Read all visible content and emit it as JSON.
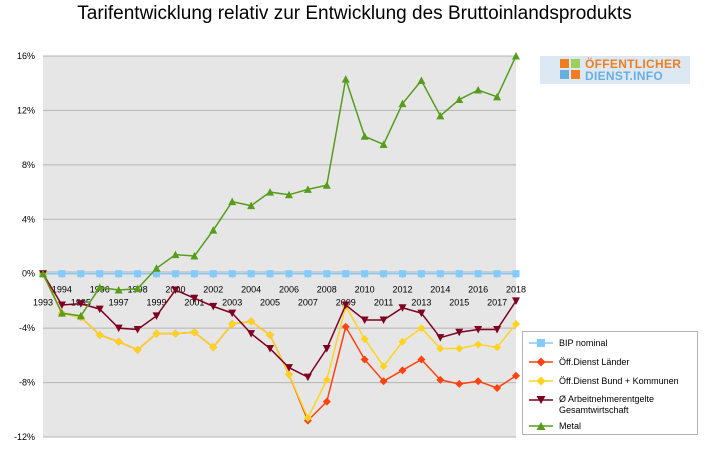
{
  "chart_data": {
    "type": "line",
    "title": "Tarifentwicklung relativ zur Entwicklung des Bruttoinlandsprodukts",
    "xlabel": "",
    "ylabel": "",
    "ylim": [
      -12,
      16
    ],
    "y_ticks": [
      "16%",
      "12%",
      "8%",
      "4%",
      "0%",
      "-4%",
      "-8%",
      "-12%"
    ],
    "y_tick_values": [
      16,
      12,
      8,
      4,
      0,
      -4,
      -8,
      -12
    ],
    "x_tick_labels": [
      "1993",
      "1994",
      "1995",
      "1996",
      "1997",
      "1998",
      "1999",
      "2000",
      "2001",
      "2002",
      "2003",
      "2004",
      "2005",
      "2006",
      "2007",
      "2008",
      "2009",
      "2010",
      "2011",
      "2012",
      "2013",
      "2014",
      "2015",
      "2016",
      "2017",
      "2018"
    ],
    "x": [
      1993,
      1994,
      1995,
      1996,
      1997,
      1998,
      1999,
      2000,
      2001,
      2002,
      2003,
      2004,
      2005,
      2006,
      2007,
      2008,
      2009,
      2010,
      2011,
      2012,
      2013,
      2014,
      2015,
      2016,
      2017,
      2018
    ],
    "grid": true,
    "legend_position": "bottom-right",
    "series": [
      {
        "name": "BIP nominal",
        "color": "#83caff",
        "marker": "square",
        "values": [
          0,
          0,
          0,
          0,
          0,
          0,
          0,
          0,
          0,
          0,
          0,
          0,
          0,
          0,
          0,
          0,
          0,
          0,
          0,
          0,
          0,
          0,
          0,
          0,
          0,
          0
        ]
      },
      {
        "name": "Öff.Dienst Länder",
        "color": "#ff420e",
        "marker": "diamond",
        "values": [
          0,
          -2.9,
          -3.2,
          -4.5,
          -5.0,
          -5.6,
          -4.4,
          -4.4,
          -4.3,
          -5.4,
          -3.7,
          -3.5,
          -4.5,
          -7.4,
          -10.8,
          -9.4,
          -3.9,
          -6.3,
          -7.9,
          -7.1,
          -6.3,
          -7.8,
          -8.1,
          -7.9,
          -8.4,
          -7.5
        ]
      },
      {
        "name": "Öff.Dienst Bund + Kommunen",
        "color": "#ffd320",
        "marker": "diamond",
        "values": [
          0,
          -2.9,
          -3.2,
          -4.5,
          -5.0,
          -5.6,
          -4.4,
          -4.4,
          -4.3,
          -5.4,
          -3.7,
          -3.5,
          -4.5,
          -7.4,
          -10.6,
          -7.8,
          -2.4,
          -4.8,
          -6.8,
          -5.0,
          -4.0,
          -5.5,
          -5.5,
          -5.2,
          -5.4,
          -3.7
        ]
      },
      {
        "name": "Ø Arbeitnehmerentgelte Gesamtwirtschaft",
        "color": "#7e0021",
        "marker": "triangle-down",
        "values": [
          0,
          -2.3,
          -2.2,
          -2.6,
          -4.0,
          -4.1,
          -3.1,
          -1.2,
          -1.8,
          -2.4,
          -2.9,
          -4.4,
          -5.5,
          -6.9,
          -7.6,
          -5.5,
          -2.3,
          -3.4,
          -3.4,
          -2.5,
          -2.9,
          -4.7,
          -4.3,
          -4.1,
          -4.1,
          -2.0
        ]
      },
      {
        "name": "Metal",
        "color": "#579d1c",
        "marker": "triangle-up",
        "values": [
          0,
          -2.9,
          -3.1,
          -1.0,
          -1.2,
          -1.1,
          0.4,
          1.4,
          1.3,
          3.2,
          5.3,
          5.0,
          6.0,
          5.8,
          6.2,
          6.5,
          14.3,
          10.1,
          9.5,
          12.5,
          14.2,
          11.6,
          12.8,
          13.5,
          13.0,
          16.0
        ]
      }
    ]
  },
  "logo": {
    "line1": "ÖFFENTLICHER",
    "line2": "DIENST.INFO"
  },
  "legend": {
    "items": [
      {
        "text": "BIP nominal"
      },
      {
        "text": "Öff.Dienst Länder"
      },
      {
        "text": "Öff.Dienst Bund + Kommunen"
      },
      {
        "text": "Ø Arbeitnehmerentgelte Gesamtwirtschaft",
        "line1": "Ø Arbeitnehmerentgelte",
        "line2": "Gesamtwirtschaft"
      },
      {
        "text": "Metal"
      }
    ]
  }
}
